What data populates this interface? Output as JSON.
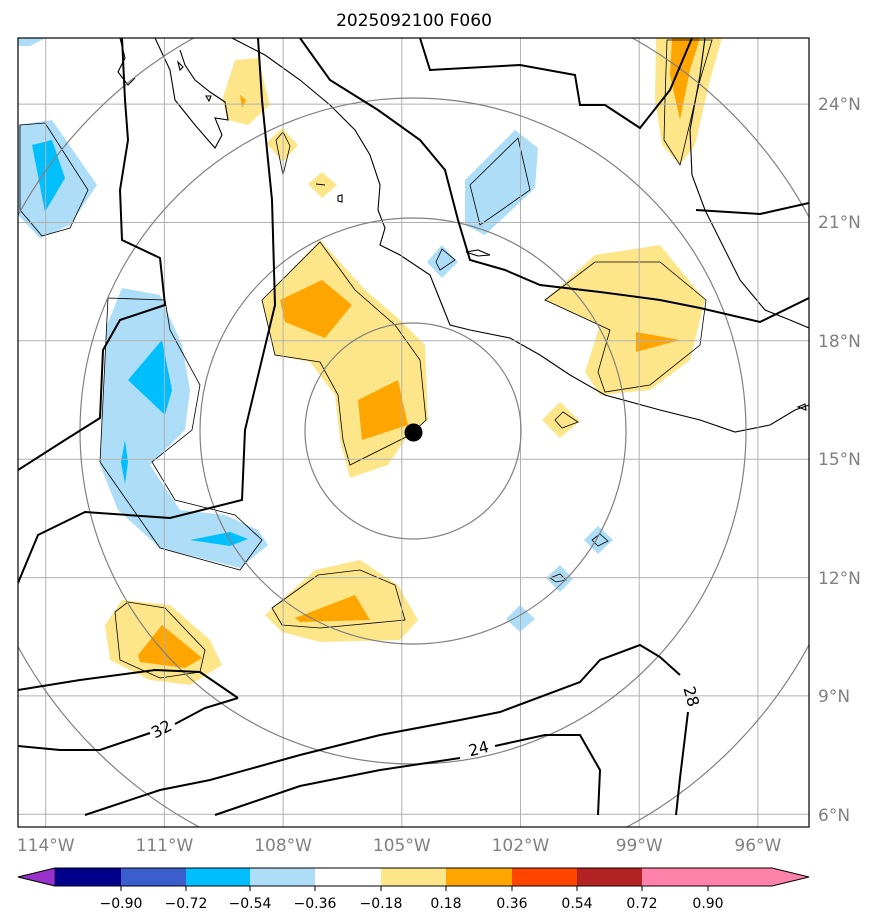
{
  "chart_data": {
    "type": "contour map",
    "title": "2025092100 F060",
    "x_ticks": [
      "114°W",
      "111°W",
      "108°W",
      "105°W",
      "102°W",
      "99°W",
      "96°W"
    ],
    "y_ticks": [
      "24°N",
      "21°N",
      "18°N",
      "15°N",
      "12°N",
      "9°N",
      "6°N"
    ],
    "lon_range": [
      -114.7,
      -94.7
    ],
    "lat_range": [
      5.7,
      25.7
    ],
    "grid": true,
    "storm_center": {
      "lon": -104.7,
      "lat": 15.7
    },
    "range_ring_count": 4,
    "contour_labels": [
      "32",
      "24",
      "28"
    ],
    "colorbar": {
      "ticks": [
        "−0.90",
        "−0.72",
        "−0.54",
        "−0.36",
        "−0.18",
        "0.18",
        "0.36",
        "0.54",
        "0.72",
        "0.90"
      ],
      "colors": [
        "#9932cc",
        "#00008b",
        "#3a5fcd",
        "#00bfff",
        "#aeddf7",
        "#ffffff",
        "#fde68a",
        "#ffa500",
        "#ff4500",
        "#b22222",
        "#ff82ab"
      ],
      "extend": "both"
    }
  }
}
